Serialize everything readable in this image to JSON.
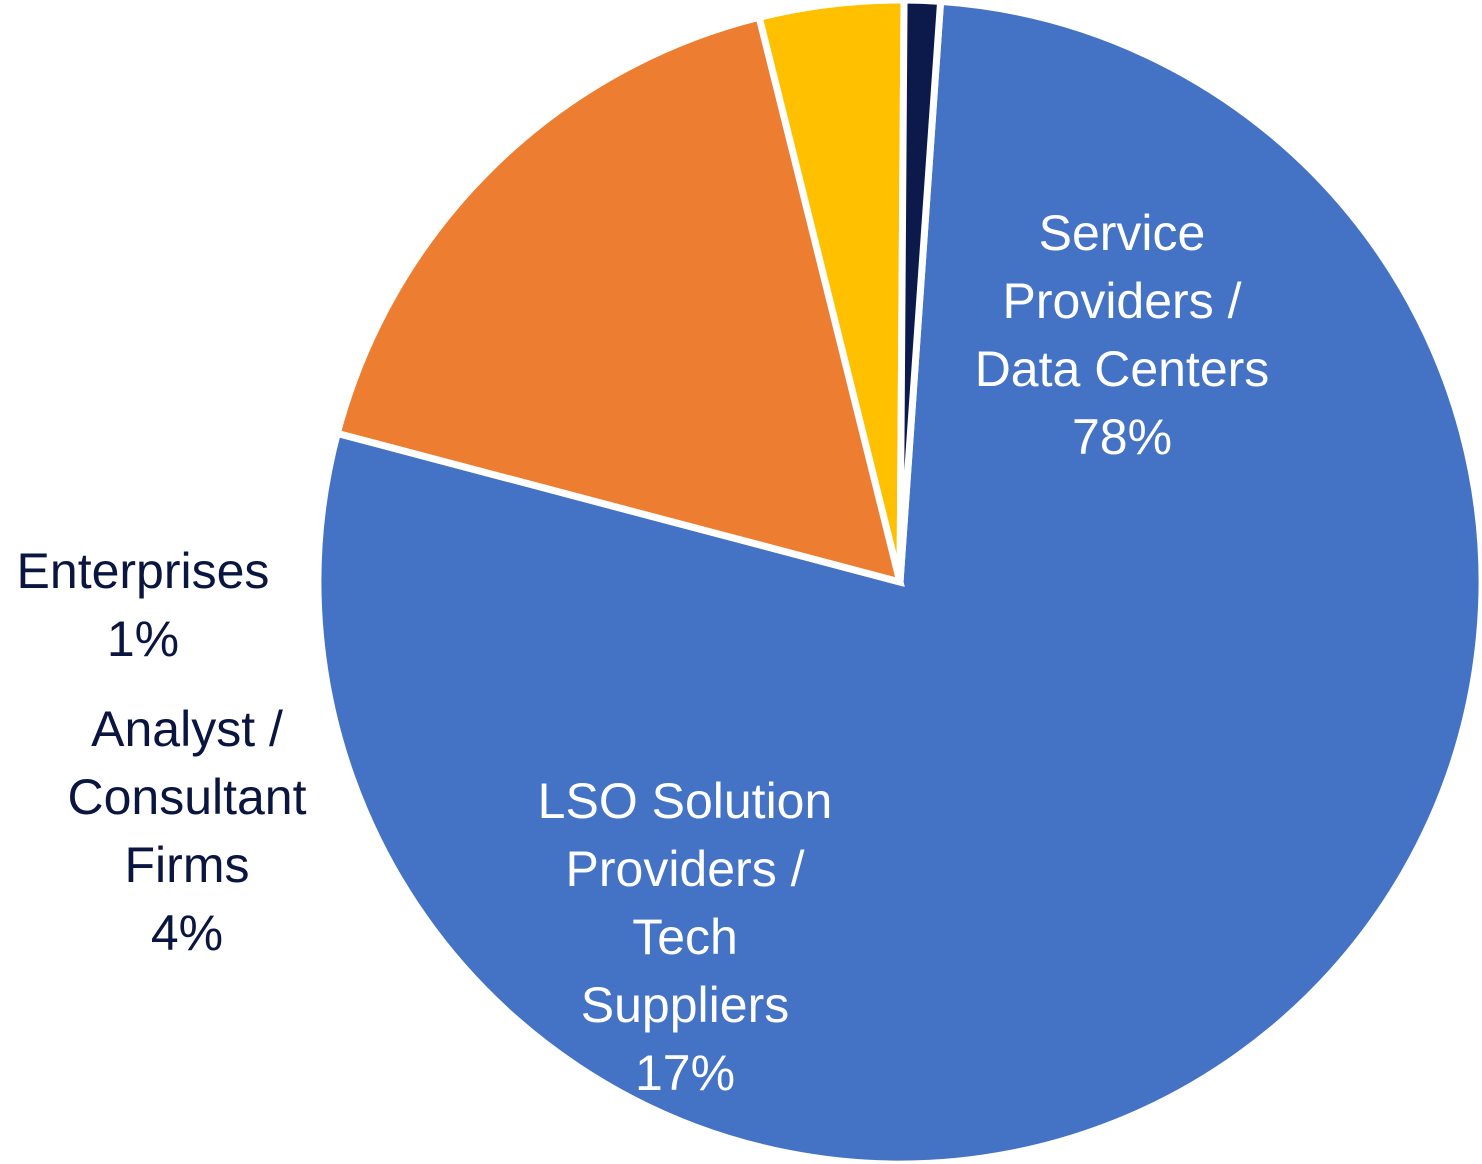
{
  "chart_data": {
    "type": "pie",
    "title": "",
    "slices": [
      {
        "label": [
          "Service",
          "Providers /",
          "Data Centers"
        ],
        "value": 78,
        "value_label": "78%",
        "color": "#4472C4",
        "label_color": "#ffffff"
      },
      {
        "label": [
          "LSO Solution",
          "Providers /",
          "Tech",
          "Suppliers"
        ],
        "value": 17,
        "value_label": "17%",
        "color": "#ED7D31",
        "label_color": "#ffffff"
      },
      {
        "label": [
          "Analyst /",
          "Consultant",
          "Firms"
        ],
        "value": 4,
        "value_label": "4%",
        "color": "#FFC000",
        "label_color": "#0a1640"
      },
      {
        "label": [
          "Enterprises"
        ],
        "value": 1,
        "value_label": "1%",
        "color": "#0b1a4a",
        "label_color": "#0a1640"
      }
    ],
    "start_angle_deg": 4,
    "direction": "clockwise",
    "legend": "none"
  }
}
